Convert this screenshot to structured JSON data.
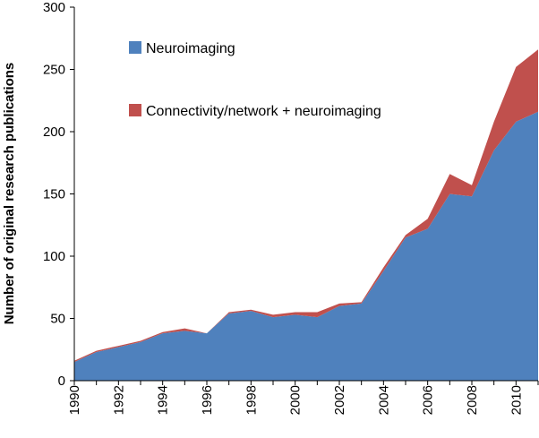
{
  "chart_data": {
    "type": "area",
    "stacked": true,
    "title": "",
    "xlabel": "",
    "ylabel": "Number of original research publications",
    "x": [
      1990,
      1991,
      1992,
      1993,
      1994,
      1995,
      1996,
      1997,
      1998,
      1999,
      2000,
      2001,
      2002,
      2003,
      2004,
      2005,
      2006,
      2007,
      2008,
      2009,
      2010,
      2011
    ],
    "xticks": [
      "1990",
      "1992",
      "1994",
      "1996",
      "1998",
      "2000",
      "2002",
      "2004",
      "2006",
      "2008",
      "2010"
    ],
    "ylim": [
      0,
      300
    ],
    "yticks": [
      "0",
      "50",
      "100",
      "150",
      "200",
      "250",
      "300"
    ],
    "series": [
      {
        "name": "Neuroimaging",
        "color": "#4F81BD",
        "values": [
          15,
          23,
          27,
          31,
          38,
          40,
          38,
          54,
          56,
          51,
          53,
          51,
          60,
          62,
          88,
          115,
          122,
          150,
          148,
          185,
          208,
          216
        ]
      },
      {
        "name": "Connectivity/network + neuroimaging",
        "color": "#C0504D",
        "values": [
          1,
          1,
          1,
          1,
          1,
          2,
          0,
          1,
          1,
          2,
          2,
          4,
          2,
          1,
          3,
          2,
          8,
          16,
          9,
          23,
          44,
          50
        ]
      }
    ],
    "grid": false,
    "legend_position": "top-left"
  }
}
